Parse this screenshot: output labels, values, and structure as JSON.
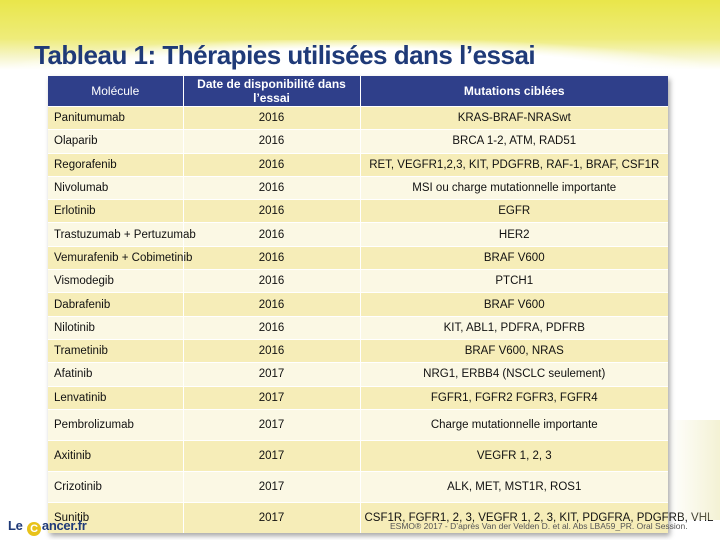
{
  "title": "Tableau 1: Thérapies utilisées dans l’essai",
  "table": {
    "headers": [
      "Molécule",
      "Date de disponibilité  dans l’essai",
      "Mutations  ciblées"
    ],
    "rows": [
      {
        "molecule": "Panitumumab",
        "date": "2016",
        "mutations": "KRAS-BRAF-NRASwt"
      },
      {
        "molecule": "Olaparib",
        "date": "2016",
        "mutations": "BRCA 1-2, ATM, RAD51"
      },
      {
        "molecule": "Regorafenib",
        "date": "2016",
        "mutations": "RET, VEGFR1,2,3, KIT, PDGFRB, RAF-1, BRAF, CSF1R"
      },
      {
        "molecule": "Nivolumab",
        "date": "2016",
        "mutations": "MSI ou charge mutationnelle importante"
      },
      {
        "molecule": "Erlotinib",
        "date": "2016",
        "mutations": "EGFR"
      },
      {
        "molecule": "Trastuzumab + Pertuzumab",
        "date": "2016",
        "mutations": "HER2"
      },
      {
        "molecule": "Vemurafenib + Cobimetinib",
        "date": "2016",
        "mutations": "BRAF V600"
      },
      {
        "molecule": "Vismodegib",
        "date": "2016",
        "mutations": "PTCH1"
      },
      {
        "molecule": "Dabrafenib",
        "date": "2016",
        "mutations": "BRAF V600"
      },
      {
        "molecule": "Nilotinib",
        "date": "2016",
        "mutations": "KIT, ABL1, PDFRA, PDFRB"
      },
      {
        "molecule": "Trametinib",
        "date": "2016",
        "mutations": "BRAF V600, NRAS"
      },
      {
        "molecule": "Afatinib",
        "date": "2017",
        "mutations": "NRG1, ERBB4 (NSCLC seulement)"
      },
      {
        "molecule": "Lenvatinib",
        "date": "2017",
        "mutations": "FGFR1, FGFR2 FGFR3, FGFR4"
      },
      {
        "molecule": "Pembrolizumab",
        "date": "2017",
        "mutations": "Charge mutationnelle importante"
      },
      {
        "molecule": "Axitinib",
        "date": "2017",
        "mutations": "VEGFR 1, 2, 3"
      },
      {
        "molecule": "Crizotinib",
        "date": "2017",
        "mutations": "ALK, MET, MST1R, ROS1"
      },
      {
        "molecule": "Sunitib",
        "date": "2017",
        "mutations": "CSF1R, FGFR1, 2, 3, VEGFR 1, 2, 3, KIT, PDGFRA, PDGFRB, VHL"
      }
    ]
  },
  "footer": {
    "logo_pre": "Le ",
    "logo_c": "C",
    "logo_post": "ancer.fr",
    "note": "ESMO® 2017 - D’après Van der Velden D. et al. Abs LBA59_PR. Oral Session."
  }
}
